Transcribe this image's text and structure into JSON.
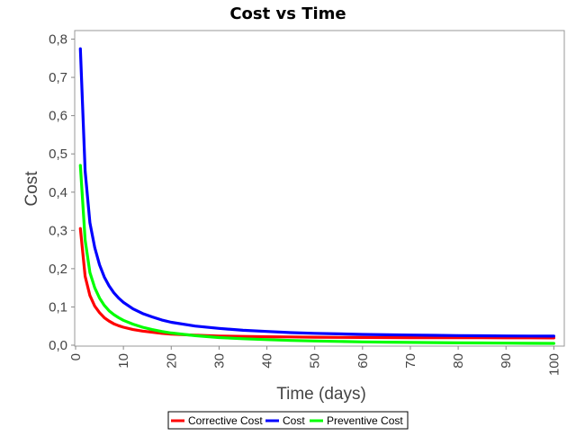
{
  "chart_data": {
    "type": "line",
    "title": "Cost vs Time",
    "xlabel": "Time (days)",
    "ylabel": "Cost",
    "xlim": [
      0,
      102
    ],
    "ylim": [
      0,
      0.82
    ],
    "xticks": [
      0,
      10,
      20,
      30,
      40,
      50,
      60,
      70,
      80,
      90,
      100
    ],
    "yticks": [
      0,
      0.1,
      0.2,
      0.3,
      0.4,
      0.5,
      0.6,
      0.7,
      0.8
    ],
    "xtick_labels": [
      "0",
      "10",
      "20",
      "30",
      "40",
      "50",
      "60",
      "70",
      "80",
      "90",
      "100"
    ],
    "ytick_labels": [
      "0,0",
      "0,1",
      "0,2",
      "0,3",
      "0,4",
      "0,5",
      "0,6",
      "0,7",
      "0,8"
    ],
    "grid": false,
    "legend": "bottom",
    "x": [
      1,
      2,
      3,
      4,
      5,
      6,
      7,
      8,
      9,
      10,
      12,
      14,
      16,
      18,
      20,
      25,
      30,
      35,
      40,
      45,
      50,
      55,
      60,
      65,
      70,
      75,
      80,
      85,
      90,
      95,
      100
    ],
    "series": [
      {
        "name": "Corrective Cost",
        "color": "#ff0000",
        "values": [
          0.305,
          0.18,
          0.13,
          0.102,
          0.085,
          0.072,
          0.063,
          0.056,
          0.051,
          0.047,
          0.041,
          0.037,
          0.034,
          0.031,
          0.029,
          0.026,
          0.024,
          0.023,
          0.022,
          0.0215,
          0.021,
          0.0205,
          0.0202,
          0.02,
          0.0198,
          0.0196,
          0.0195,
          0.0194,
          0.0193,
          0.0192,
          0.0191
        ]
      },
      {
        "name": "Cost",
        "color": "#0000ff",
        "values": [
          0.775,
          0.455,
          0.32,
          0.255,
          0.21,
          0.178,
          0.155,
          0.137,
          0.123,
          0.112,
          0.095,
          0.083,
          0.074,
          0.066,
          0.06,
          0.05,
          0.044,
          0.039,
          0.036,
          0.033,
          0.031,
          0.0295,
          0.0283,
          0.0273,
          0.0265,
          0.0258,
          0.0252,
          0.0247,
          0.0243,
          0.024,
          0.0237
        ]
      },
      {
        "name": "Preventive Cost",
        "color": "#00ff00",
        "values": [
          0.47,
          0.275,
          0.19,
          0.15,
          0.123,
          0.104,
          0.09,
          0.08,
          0.072,
          0.065,
          0.055,
          0.047,
          0.041,
          0.036,
          0.032,
          0.025,
          0.02,
          0.017,
          0.0145,
          0.0125,
          0.011,
          0.0098,
          0.0088,
          0.008,
          0.0073,
          0.0067,
          0.0062,
          0.0058,
          0.0054,
          0.005,
          0.0047
        ]
      }
    ]
  }
}
